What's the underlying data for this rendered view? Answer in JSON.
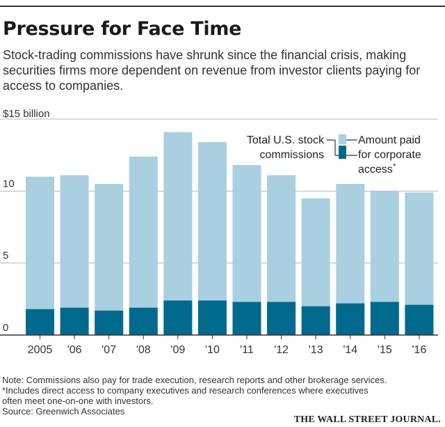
{
  "header": {
    "title": "Pressure for Face Time",
    "subtitle": "Stock-trading commissions have shrunk since the financial crisis, making securities firms more dependent on revenue from investor clients paying for access to companies."
  },
  "chart_data": {
    "type": "bar",
    "unit_label": "$15 billion",
    "categories": [
      "2005",
      "'06",
      "'07",
      "'08",
      "'09",
      "'10",
      "'11",
      "'12",
      "'13",
      "'14",
      "'15",
      "'16"
    ],
    "series": [
      {
        "values": [
          11.0,
          11.1,
          10.5,
          12.4,
          14.1,
          13.4,
          11.8,
          11.1,
          9.5,
          10.5,
          10.0,
          9.9
        ],
        "color": "#a9cfe0"
      },
      {
        "values": [
          1.8,
          1.9,
          1.7,
          1.9,
          2.4,
          2.4,
          2.3,
          2.3,
          2.0,
          2.2,
          2.3,
          2.1
        ],
        "color": "#006a8e"
      }
    ],
    "legend": {
      "total_label_line1": "Total U.S. stock",
      "total_label_line2": "commissions",
      "access_label_line1": "Amount paid",
      "access_label_line2": "for corporate",
      "access_label_line3": "access",
      "access_marker": "*"
    },
    "ylim": [
      0,
      15
    ],
    "yticks": [
      0,
      5,
      10
    ],
    "grid": true
  },
  "footer": {
    "note": "Note: Commissions also pay for trade execution, research reports and other brokerage services.",
    "footnote_line1": "*Includes direct access to company executives and research conferences where executives",
    "footnote_line2": "often meet one-on-one with investors.",
    "source": "Source: Greenwich Associates",
    "publisher": "THE WALL STREET JOURNAL."
  }
}
